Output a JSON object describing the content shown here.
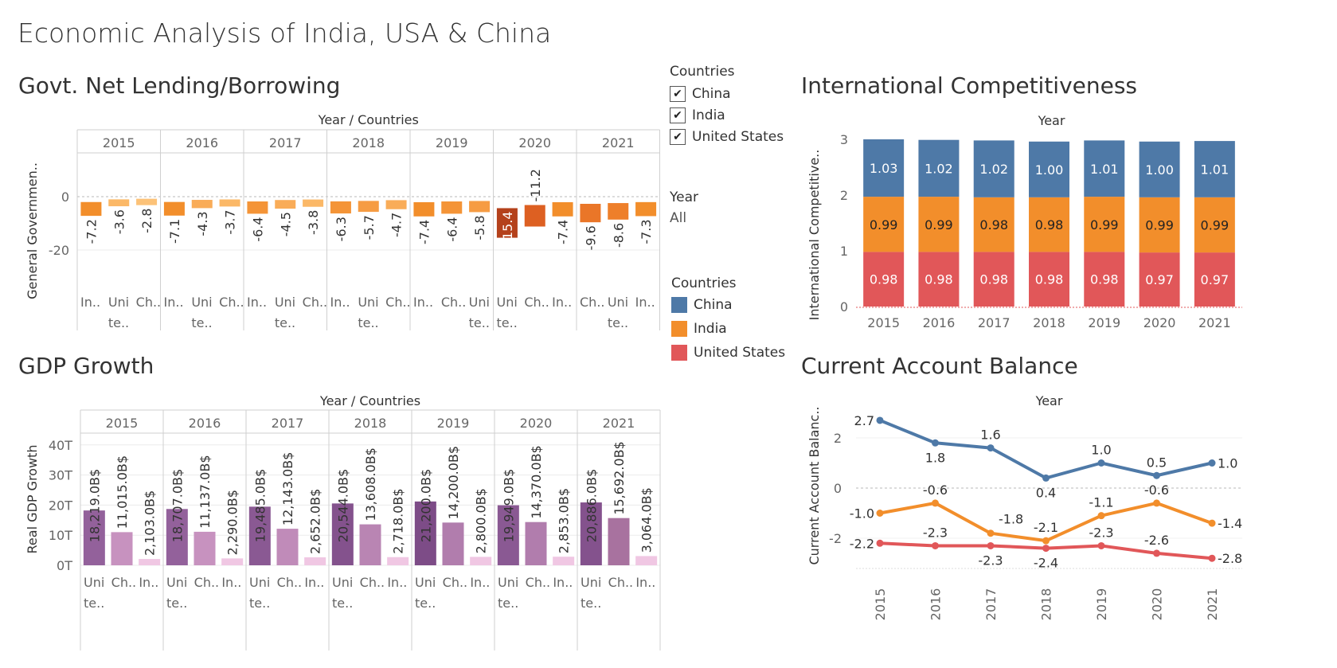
{
  "dashboard": {
    "title": "Economic Analysis of India, USA & China"
  },
  "filter": {
    "title": "Countries",
    "items": [
      {
        "label": "China",
        "checked": true
      },
      {
        "label": "India",
        "checked": true
      },
      {
        "label": "United States",
        "checked": true
      }
    ]
  },
  "year_filter": {
    "title": "Year",
    "value": "All"
  },
  "color_legend": {
    "title": "Countries",
    "items": [
      {
        "label": "China",
        "color": "#4e79a7"
      },
      {
        "label": "India",
        "color": "#f28e2b"
      },
      {
        "label": "United States",
        "color": "#e15759"
      }
    ]
  },
  "chart_data": [
    {
      "id": "lending",
      "type": "bar",
      "title": "Govt. Net Lending/Borrowing",
      "header_label": "Year / Countries",
      "ylabel": "General Governmen..",
      "ylim": [
        -33,
        15
      ],
      "yticks": [
        {
          "value": 0,
          "label": "0"
        },
        {
          "value": -20,
          "label": "-20"
        }
      ],
      "years": [
        "2015",
        "2016",
        "2017",
        "2018",
        "2019",
        "2020",
        "2021"
      ],
      "groups": [
        {
          "year": "2015",
          "bars": [
            {
              "label": [
                "In..",
                ""
              ],
              "value": -7.2,
              "text": "-7.2",
              "color": "#f28e2b"
            },
            {
              "label": [
                "Uni",
                "te.."
              ],
              "value": -3.6,
              "text": "-3.6",
              "color": "#fbb867"
            },
            {
              "label": [
                "Ch..",
                ""
              ],
              "value": -2.8,
              "text": "-2.8",
              "color": "#fcc278"
            }
          ]
        },
        {
          "year": "2016",
          "bars": [
            {
              "label": [
                "In..",
                ""
              ],
              "value": -7.1,
              "text": "-7.1",
              "color": "#f28e2b"
            },
            {
              "label": [
                "Uni",
                "te.."
              ],
              "value": -4.3,
              "text": "-4.3",
              "color": "#f9ac58"
            },
            {
              "label": [
                "Ch..",
                ""
              ],
              "value": -3.7,
              "text": "-3.7",
              "color": "#fbb867"
            }
          ]
        },
        {
          "year": "2017",
          "bars": [
            {
              "label": [
                "In..",
                ""
              ],
              "value": -6.4,
              "text": "-6.4",
              "color": "#f49437"
            },
            {
              "label": [
                "Uni",
                "te.."
              ],
              "value": -4.5,
              "text": "-4.5",
              "color": "#f9ac58"
            },
            {
              "label": [
                "Ch..",
                ""
              ],
              "value": -3.8,
              "text": "-3.8",
              "color": "#fbb867"
            }
          ]
        },
        {
          "year": "2018",
          "bars": [
            {
              "label": [
                "In..",
                ""
              ],
              "value": -6.3,
              "text": "-6.3",
              "color": "#f49437"
            },
            {
              "label": [
                "Uni",
                "te.."
              ],
              "value": -5.7,
              "text": "-5.7",
              "color": "#f69c43"
            },
            {
              "label": [
                "Ch..",
                ""
              ],
              "value": -4.7,
              "text": "-4.7",
              "color": "#f9ac58"
            }
          ]
        },
        {
          "year": "2019",
          "bars": [
            {
              "label": [
                "In..",
                ""
              ],
              "value": -7.4,
              "text": "-7.4",
              "color": "#f28e2b"
            },
            {
              "label": [
                "Ch..",
                ""
              ],
              "value": -6.4,
              "text": "-6.4",
              "color": "#f49437"
            },
            {
              "label": [
                "Uni",
                "te.."
              ],
              "value": -5.8,
              "text": "-5.8",
              "color": "#f69c43"
            }
          ]
        },
        {
          "year": "2020",
          "bars": [
            {
              "label": [
                "Uni",
                "te.."
              ],
              "value": -15.4,
              "text": "-15.4",
              "color": "#b4411b"
            },
            {
              "label": [
                "Ch..",
                ""
              ],
              "value": -11.2,
              "text": "-11.2",
              "color": "#dd6022"
            },
            {
              "label": [
                "In..",
                ""
              ],
              "value": -7.4,
              "text": "-7.4",
              "color": "#f28e2b"
            }
          ]
        },
        {
          "year": "2021",
          "bars": [
            {
              "label": [
                "Ch..",
                ""
              ],
              "value": -9.6,
              "text": "-9.6",
              "color": "#ea7628"
            },
            {
              "label": [
                "Uni",
                "te.."
              ],
              "value": -8.6,
              "text": "-8.6",
              "color": "#ee7f2a"
            },
            {
              "label": [
                "In..",
                ""
              ],
              "value": -7.3,
              "text": "-7.3",
              "color": "#f28e2b"
            }
          ]
        }
      ]
    },
    {
      "id": "gdp",
      "type": "bar",
      "title": "GDP Growth",
      "header_label": "Year / Countries",
      "ylabel": "Real GDP Growth",
      "ylim": [
        0,
        45
      ],
      "yticks": [
        {
          "value": 0,
          "label": "0T"
        },
        {
          "value": 10,
          "label": "10T"
        },
        {
          "value": 20,
          "label": "20T"
        },
        {
          "value": 30,
          "label": "30T"
        },
        {
          "value": 40,
          "label": "40T"
        }
      ],
      "years": [
        "2015",
        "2016",
        "2017",
        "2018",
        "2019",
        "2020",
        "2021"
      ],
      "groups": [
        {
          "year": "2015",
          "bars": [
            {
              "label": [
                "Uni",
                "te.."
              ],
              "value": 18.219,
              "text": "18,219.0B$",
              "color": "#93619b"
            },
            {
              "label": [
                "Ch..",
                ""
              ],
              "value": 11.015,
              "text": "11,015.0B$",
              "color": "#c792bf"
            },
            {
              "label": [
                "In..",
                ""
              ],
              "value": 2.103,
              "text": "2,103.0B$",
              "color": "#f0c7e3"
            }
          ]
        },
        {
          "year": "2016",
          "bars": [
            {
              "label": [
                "Uni",
                "te.."
              ],
              "value": 18.707,
              "text": "18,707.0B$",
              "color": "#93619b"
            },
            {
              "label": [
                "Ch..",
                ""
              ],
              "value": 11.137,
              "text": "11,137.0B$",
              "color": "#c792bf"
            },
            {
              "label": [
                "In..",
                ""
              ],
              "value": 2.29,
              "text": "2,290.0B$",
              "color": "#f0c7e3"
            }
          ]
        },
        {
          "year": "2017",
          "bars": [
            {
              "label": [
                "Uni",
                "te.."
              ],
              "value": 19.485,
              "text": "19,485.0B$",
              "color": "#8a5993"
            },
            {
              "label": [
                "Ch..",
                ""
              ],
              "value": 12.143,
              "text": "12,143.0B$",
              "color": "#c08bb9"
            },
            {
              "label": [
                "In..",
                ""
              ],
              "value": 2.652,
              "text": "2,652.0B$",
              "color": "#f0c7e3"
            }
          ]
        },
        {
          "year": "2018",
          "bars": [
            {
              "label": [
                "Uni",
                "te.."
              ],
              "value": 20.544,
              "text": "20,544.0B$",
              "color": "#84528d"
            },
            {
              "label": [
                "Ch..",
                ""
              ],
              "value": 13.608,
              "text": "13,608.0B$",
              "color": "#b985b3"
            },
            {
              "label": [
                "In..",
                ""
              ],
              "value": 2.718,
              "text": "2,718.0B$",
              "color": "#f0c7e3"
            }
          ]
        },
        {
          "year": "2019",
          "bars": [
            {
              "label": [
                "Uni",
                "te.."
              ],
              "value": 21.2,
              "text": "21,200.0B$",
              "color": "#7d4c87"
            },
            {
              "label": [
                "Ch..",
                ""
              ],
              "value": 14.2,
              "text": "14,200.0B$",
              "color": "#b17dad"
            },
            {
              "label": [
                "In..",
                ""
              ],
              "value": 2.8,
              "text": "2,800.0B$",
              "color": "#f0c7e3"
            }
          ]
        },
        {
          "year": "2020",
          "bars": [
            {
              "label": [
                "Uni",
                "te.."
              ],
              "value": 19.949,
              "text": "19,949.0B$",
              "color": "#8a5993"
            },
            {
              "label": [
                "Ch..",
                ""
              ],
              "value": 14.37,
              "text": "14,370.0B$",
              "color": "#b17dad"
            },
            {
              "label": [
                "In..",
                ""
              ],
              "value": 2.853,
              "text": "2,853.0B$",
              "color": "#f0c7e3"
            }
          ]
        },
        {
          "year": "2021",
          "bars": [
            {
              "label": [
                "Uni",
                "te.."
              ],
              "value": 20.886,
              "text": "20,886.0B$",
              "color": "#84528d"
            },
            {
              "label": [
                "Ch..",
                ""
              ],
              "value": 15.692,
              "text": "15,692.0B$",
              "color": "#a8729f"
            },
            {
              "label": [
                "In..",
                ""
              ],
              "value": 3.064,
              "text": "3,064.0B$",
              "color": "#f0c7e3"
            }
          ]
        }
      ]
    },
    {
      "id": "competitiveness",
      "type": "bar",
      "stacked": true,
      "title": "International Competitiveness",
      "header_label": "Year",
      "ylabel": "International Competitive..",
      "ylim": [
        0,
        3
      ],
      "yticks": [
        {
          "value": 0,
          "label": "0"
        },
        {
          "value": 1,
          "label": "1"
        },
        {
          "value": 2,
          "label": "2"
        },
        {
          "value": 3,
          "label": "3"
        }
      ],
      "categories": [
        "2015",
        "2016",
        "2017",
        "2018",
        "2019",
        "2020",
        "2021"
      ],
      "series": [
        {
          "name": "United States",
          "color": "#e15759",
          "values": [
            0.98,
            0.98,
            0.98,
            0.98,
            0.98,
            0.97,
            0.97
          ],
          "labels": [
            "0.98",
            "0.98",
            "0.98",
            "0.98",
            "0.98",
            "0.97",
            "0.97"
          ]
        },
        {
          "name": "India",
          "color": "#f28e2b",
          "values": [
            0.99,
            0.99,
            0.98,
            0.98,
            0.99,
            0.99,
            0.99
          ],
          "labels": [
            "0.99",
            "0.99",
            "0.98",
            "0.98",
            "0.99",
            "0.99",
            "0.99"
          ]
        },
        {
          "name": "China",
          "color": "#4e79a7",
          "values": [
            1.03,
            1.02,
            1.02,
            1.0,
            1.01,
            1.0,
            1.01
          ],
          "labels": [
            "1.03",
            "1.02",
            "1.02",
            "1.00",
            "1.01",
            "1.00",
            "1.01"
          ]
        }
      ]
    },
    {
      "id": "current_account",
      "type": "line",
      "title": "Current Account Balance",
      "header_label": "Year",
      "ylabel": "Current Account Balanc..",
      "ylim": [
        -3.2,
        3.2
      ],
      "yticks": [
        {
          "value": 2,
          "label": "2"
        },
        {
          "value": 0,
          "label": "0"
        },
        {
          "value": -2,
          "label": "-2"
        }
      ],
      "categories": [
        "2015",
        "2016",
        "2017",
        "2018",
        "2019",
        "2020",
        "2021"
      ],
      "series": [
        {
          "name": "China",
          "color": "#4e79a7",
          "values": [
            2.7,
            1.8,
            1.6,
            0.4,
            1.0,
            0.5,
            1.0
          ],
          "labels": [
            "2.7",
            "1.8",
            "1.6",
            "0.4",
            "1.0",
            "0.5",
            "1.0"
          ],
          "positions": [
            "left",
            "below",
            "above",
            "below",
            "above",
            "above",
            "right"
          ]
        },
        {
          "name": "India",
          "color": "#f28e2b",
          "values": [
            -1.0,
            -0.6,
            -1.8,
            -2.1,
            -1.1,
            -0.6,
            -1.4
          ],
          "labels": [
            "-1.0",
            "-0.6",
            "-1.8",
            "-2.1",
            "-1.1",
            "-0.6",
            "-1.4"
          ],
          "positions": [
            "left",
            "above",
            "aboveright",
            "above",
            "above",
            "above",
            "right"
          ]
        },
        {
          "name": "United States",
          "color": "#e15759",
          "values": [
            -2.2,
            -2.3,
            -2.3,
            -2.4,
            -2.3,
            -2.6,
            -2.8
          ],
          "labels": [
            "-2.2",
            "-2.3",
            "-2.3",
            "-2.4",
            "-2.3",
            "-2.6",
            "-2.8"
          ],
          "positions": [
            "left",
            "above",
            "below",
            "below",
            "above",
            "above",
            "right"
          ]
        }
      ]
    }
  ]
}
